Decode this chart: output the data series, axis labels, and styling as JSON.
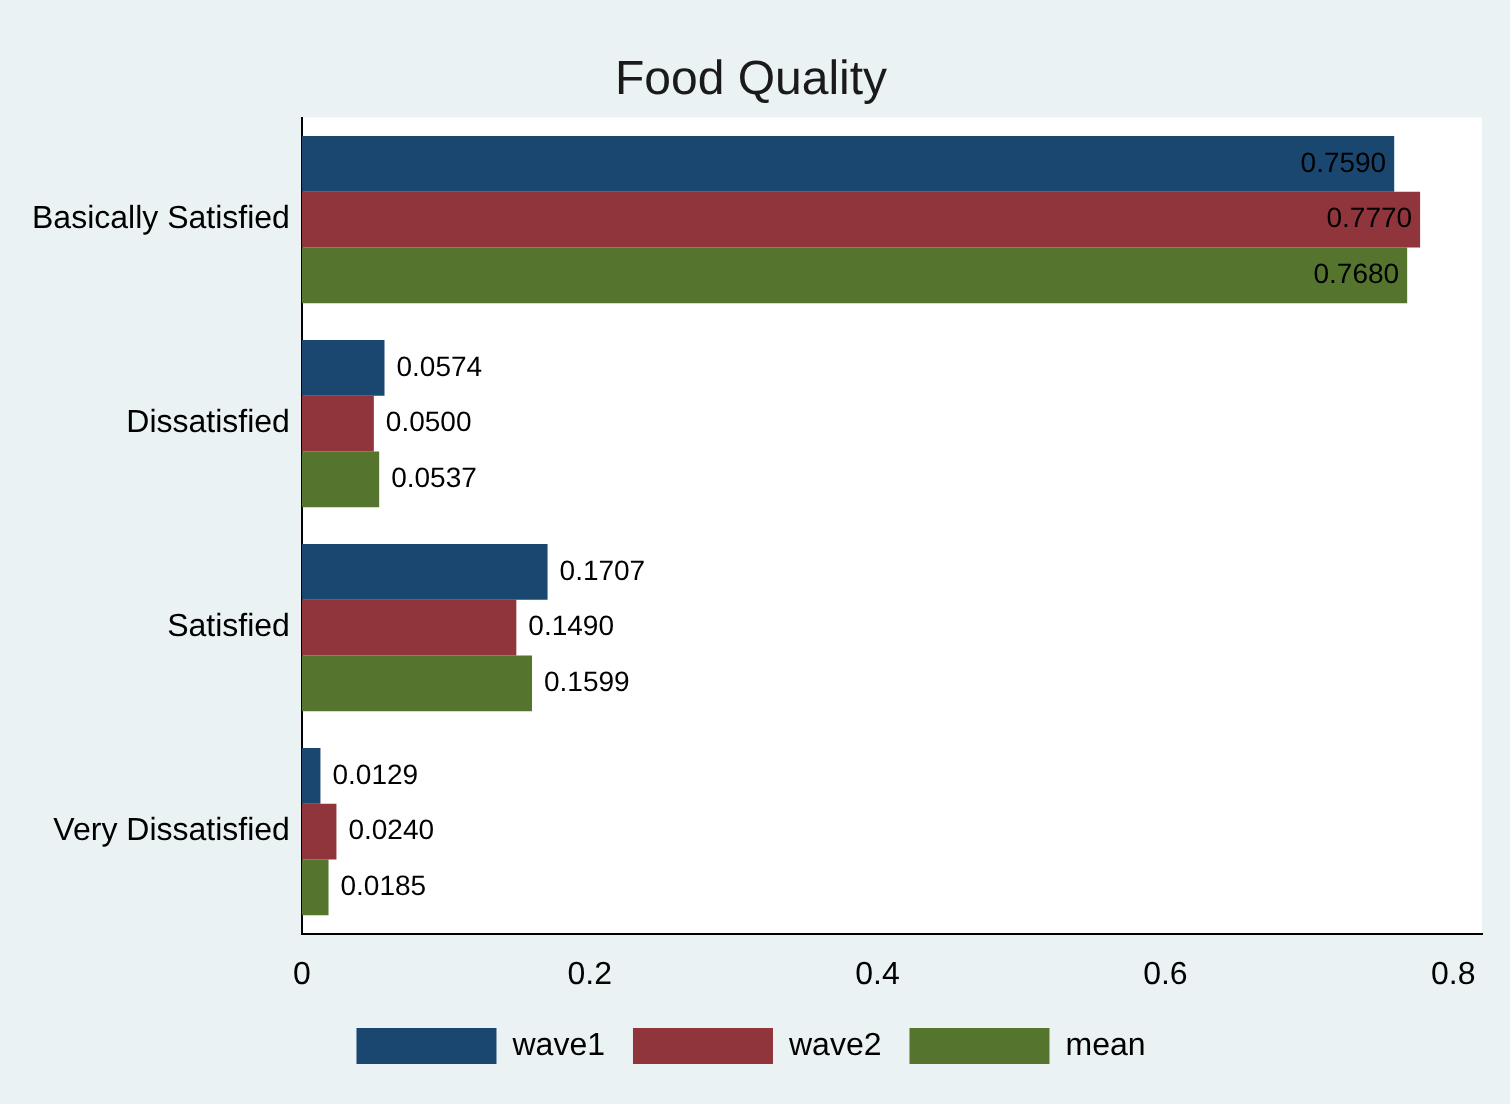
{
  "chart_data": {
    "type": "bar",
    "orientation": "horizontal",
    "title": "Food Quality",
    "categories": [
      "Basically Satisfied",
      "Dissatisfied",
      "Satisfied",
      "Very Dissatisfied"
    ],
    "series": [
      {
        "name": "wave1",
        "color": "#1a476f",
        "values": [
          0.759,
          0.0574,
          0.1707,
          0.0129
        ],
        "value_labels": [
          "0.7590",
          "0.0574",
          "0.1707",
          "0.0129"
        ]
      },
      {
        "name": "wave2",
        "color": "#90353b",
        "values": [
          0.777,
          0.05,
          0.149,
          0.024
        ],
        "value_labels": [
          "0.7770",
          "0.0500",
          "0.1490",
          "0.0240"
        ]
      },
      {
        "name": "mean",
        "color": "#55752f",
        "values": [
          0.768,
          0.0537,
          0.1599,
          0.0185
        ],
        "value_labels": [
          "0.7680",
          "0.0537",
          "0.1599",
          "0.0185"
        ]
      }
    ],
    "xlim": [
      0,
      0.82
    ],
    "xticks": [
      0,
      0.2,
      0.4,
      0.6,
      0.8
    ],
    "grid": false,
    "legend": "bottom"
  }
}
